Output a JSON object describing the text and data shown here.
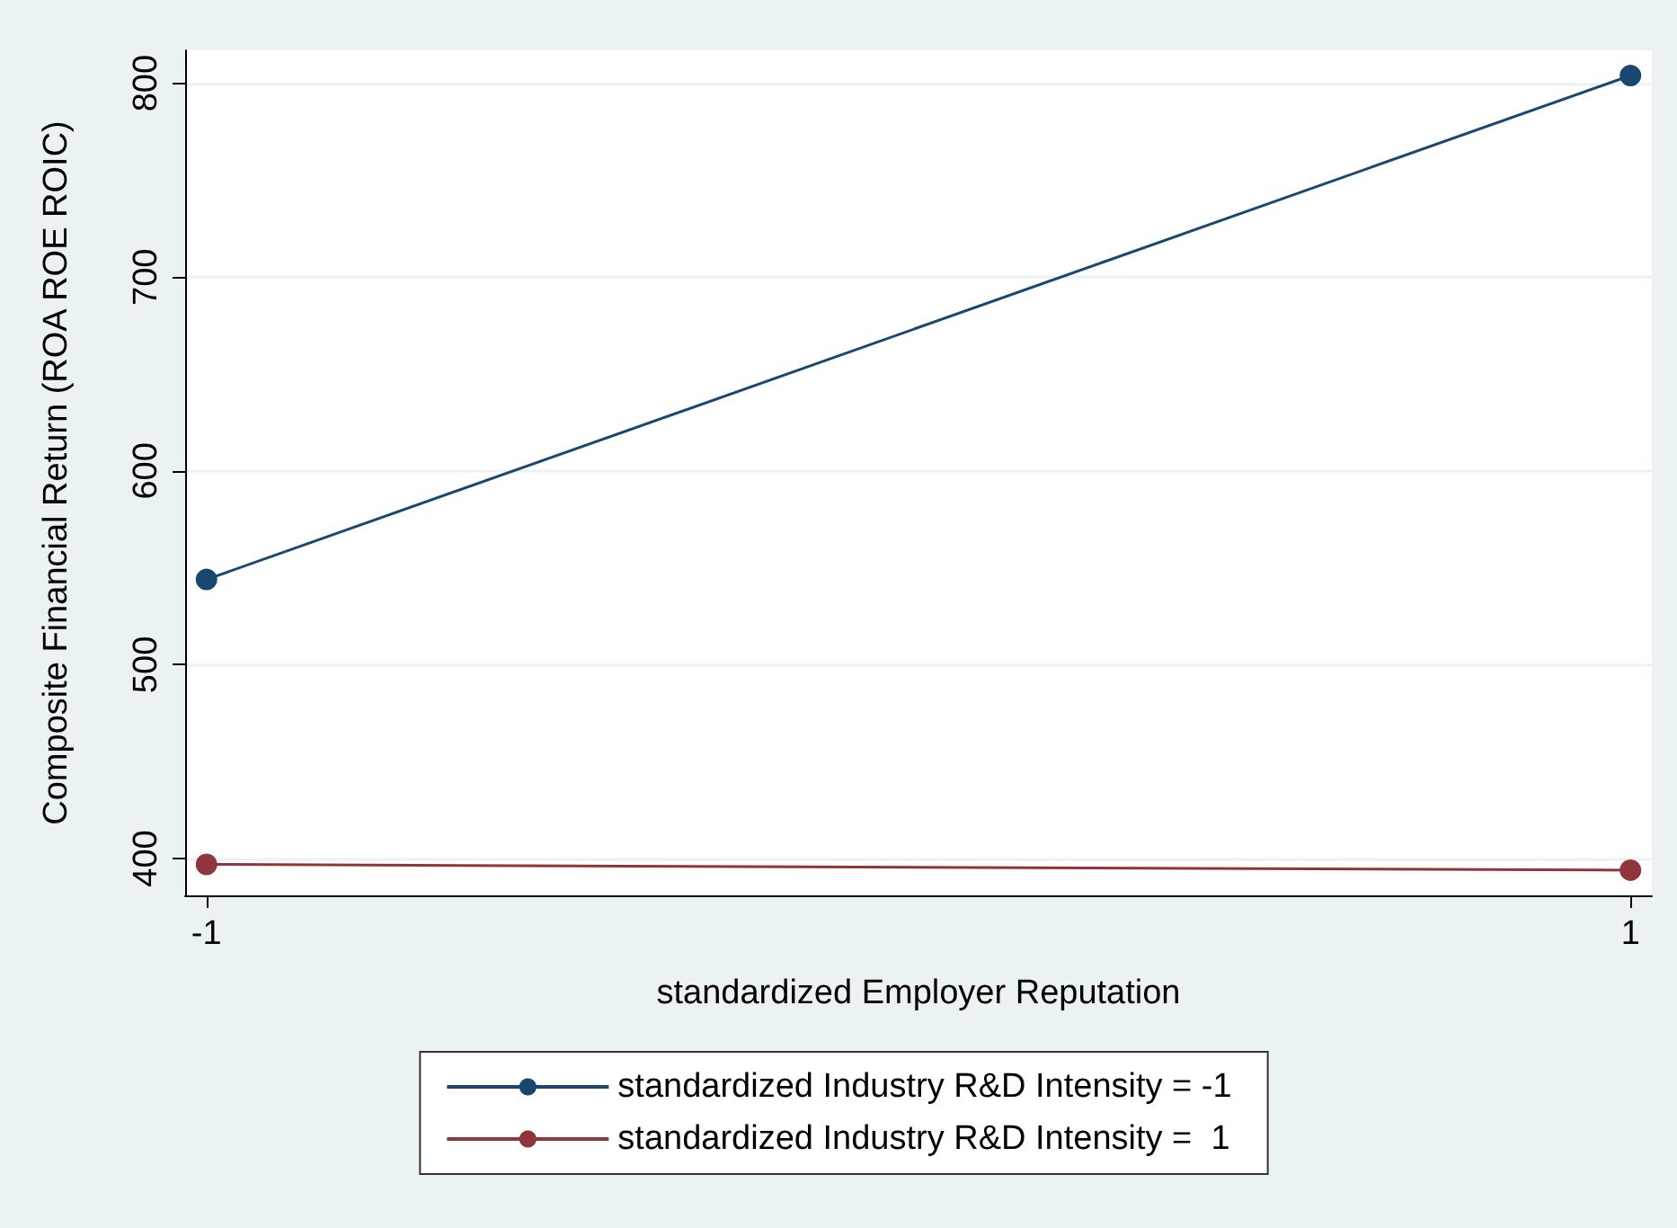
{
  "chart_data": {
    "type": "line",
    "xlabel": "standardized Employer Reputation",
    "ylabel": "Composite Financial Return (ROA ROE ROIC)",
    "x": [
      -1,
      1
    ],
    "series": [
      {
        "name": "standardized Industry R&D Intensity = -1",
        "color": "#1a476f",
        "values": [
          544,
          804
        ]
      },
      {
        "name": "standardized Industry R&D Intensity =  1",
        "color": "#90353b",
        "values": [
          397,
          394
        ]
      }
    ],
    "xlim": [
      -1.03,
      1.03
    ],
    "ylim": [
      381,
      817
    ],
    "xticks": [
      -1,
      1
    ],
    "yticks": [
      400,
      500,
      600,
      700,
      800
    ],
    "grid": "y",
    "legend": "bottom",
    "marker": "circle",
    "line_style": "solid"
  }
}
